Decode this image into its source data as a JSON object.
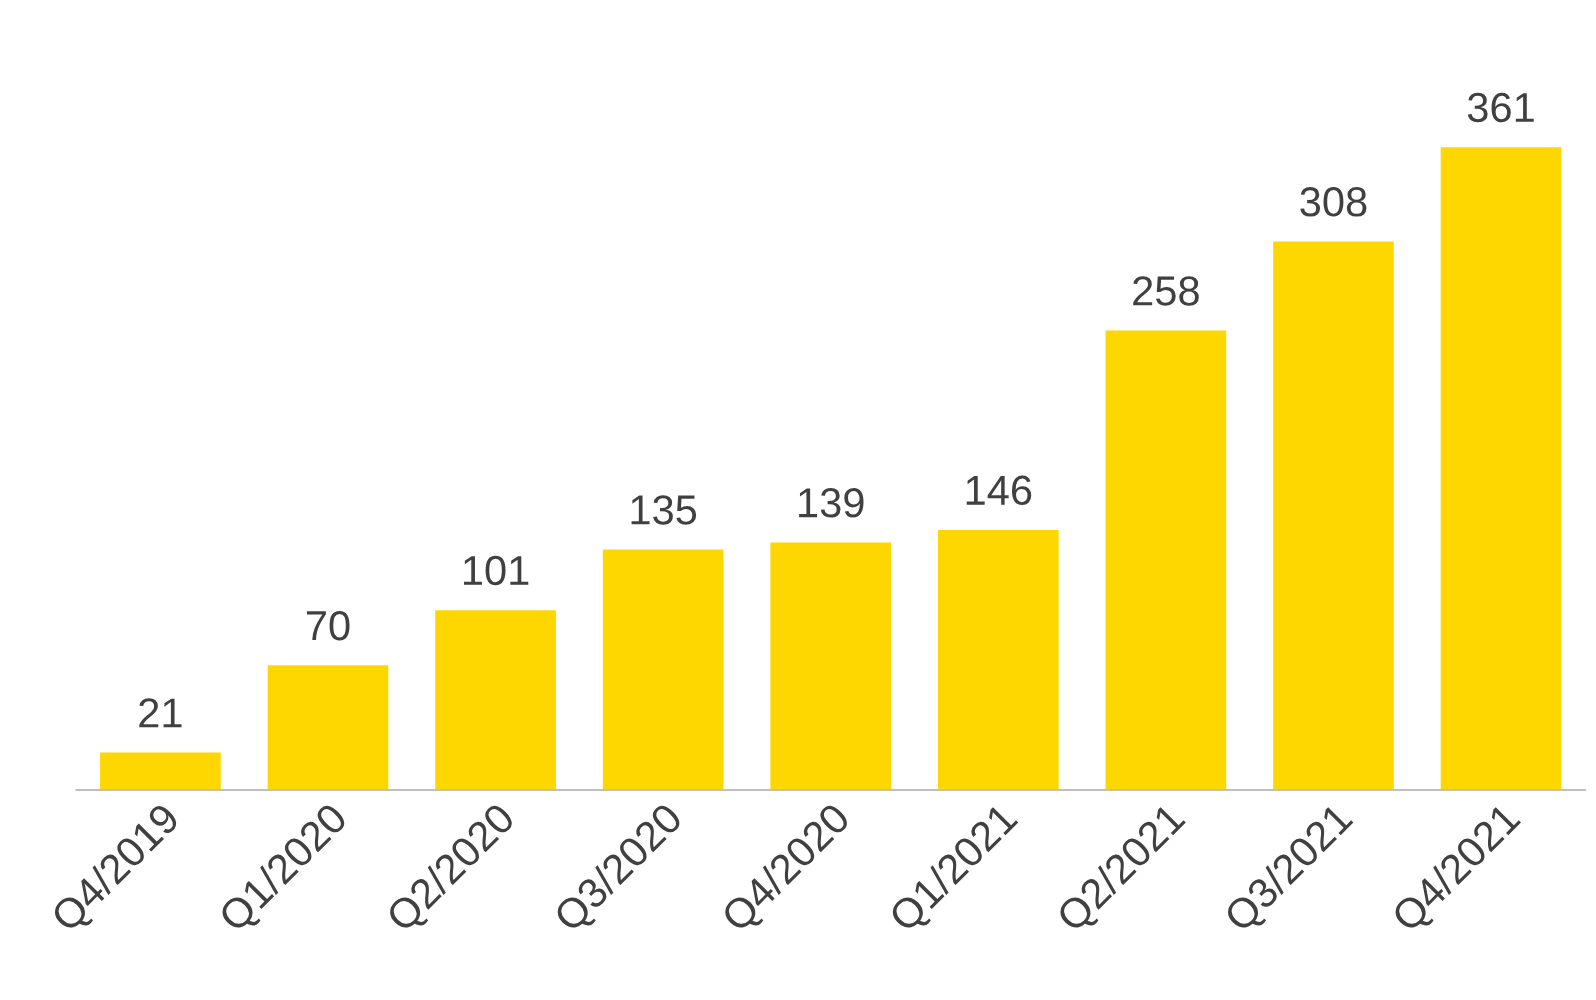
{
  "chart_data": {
    "type": "bar",
    "categories": [
      "Q4/2019",
      "Q1/2020",
      "Q2/2020",
      "Q3/2020",
      "Q4/2020",
      "Q1/2021",
      "Q2/2021",
      "Q3/2021",
      "Q4/2021"
    ],
    "values": [
      21,
      70,
      101,
      135,
      139,
      146,
      258,
      308,
      361
    ],
    "color": "#ffd700",
    "data_labels": true,
    "tick_labels": "x",
    "grid": false,
    "legend": false
  }
}
